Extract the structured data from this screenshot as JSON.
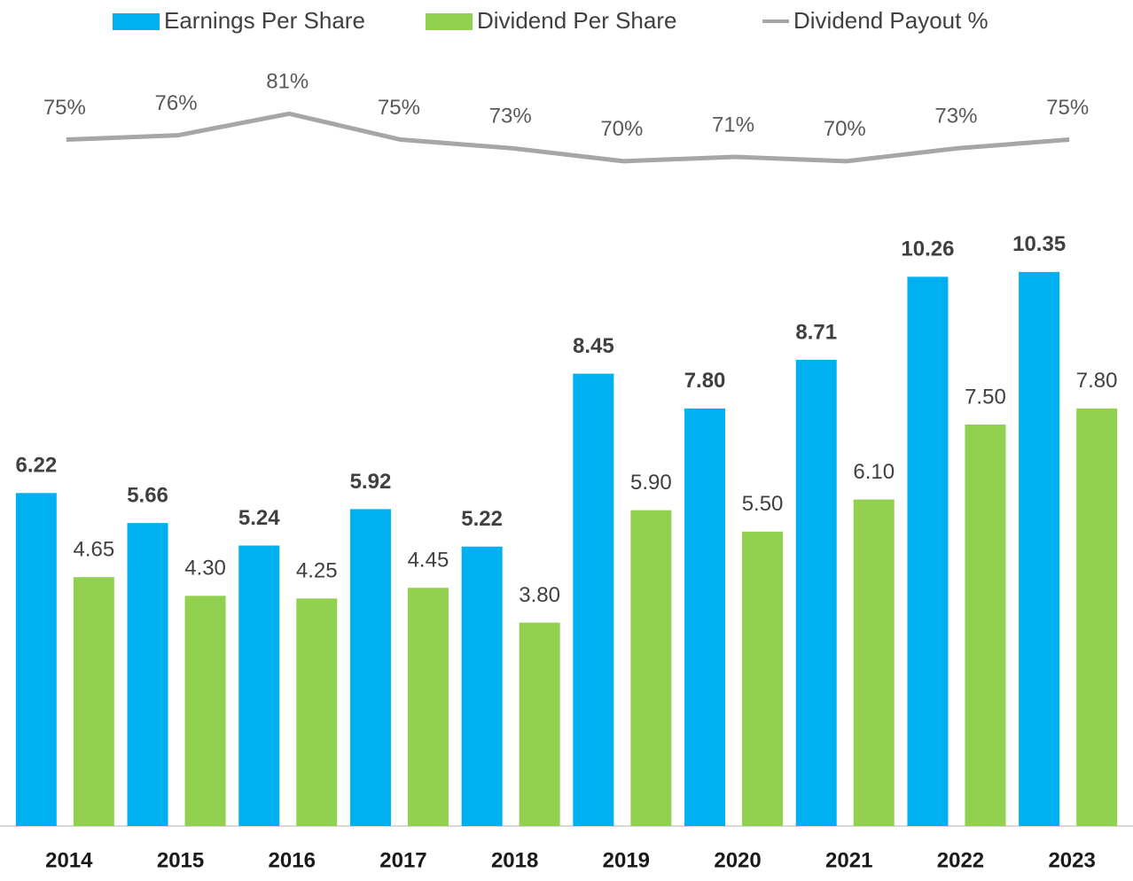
{
  "chart_data": {
    "type": "bar",
    "categories": [
      "2014",
      "2015",
      "2016",
      "2017",
      "2018",
      "2019",
      "2020",
      "2021",
      "2022",
      "2023"
    ],
    "series": [
      {
        "name": "Earnings Per Share",
        "color": "#00b0f0",
        "values": [
          6.22,
          5.66,
          5.24,
          5.92,
          5.22,
          8.45,
          7.8,
          8.71,
          10.26,
          10.35
        ],
        "value_labels": [
          "6.22",
          "5.66",
          "5.24",
          "5.92",
          "5.22",
          "8.45",
          "7.80",
          "8.71",
          "10.26",
          "10.35"
        ]
      },
      {
        "name": "Dividend Per Share",
        "color": "#92d050",
        "values": [
          4.65,
          4.3,
          4.25,
          4.45,
          3.8,
          5.9,
          5.5,
          6.1,
          7.5,
          7.8
        ],
        "value_labels": [
          "4.65",
          "4.30",
          "4.25",
          "4.45",
          "3.80",
          "5.90",
          "5.50",
          "6.10",
          "7.50",
          "7.80"
        ]
      },
      {
        "name": "Dividend Payout %",
        "type": "line",
        "axis": "y2",
        "color": "#a6a6a6",
        "values": [
          75,
          76,
          81,
          75,
          73,
          70,
          71,
          70,
          73,
          75
        ],
        "value_labels": [
          "75%",
          "76%",
          "81%",
          "75%",
          "73%",
          "70%",
          "71%",
          "70%",
          "73%",
          "75%"
        ]
      }
    ],
    "ylim": [
      0,
      15
    ],
    "y2lim": [
      -84,
      102
    ],
    "legend": "top"
  }
}
